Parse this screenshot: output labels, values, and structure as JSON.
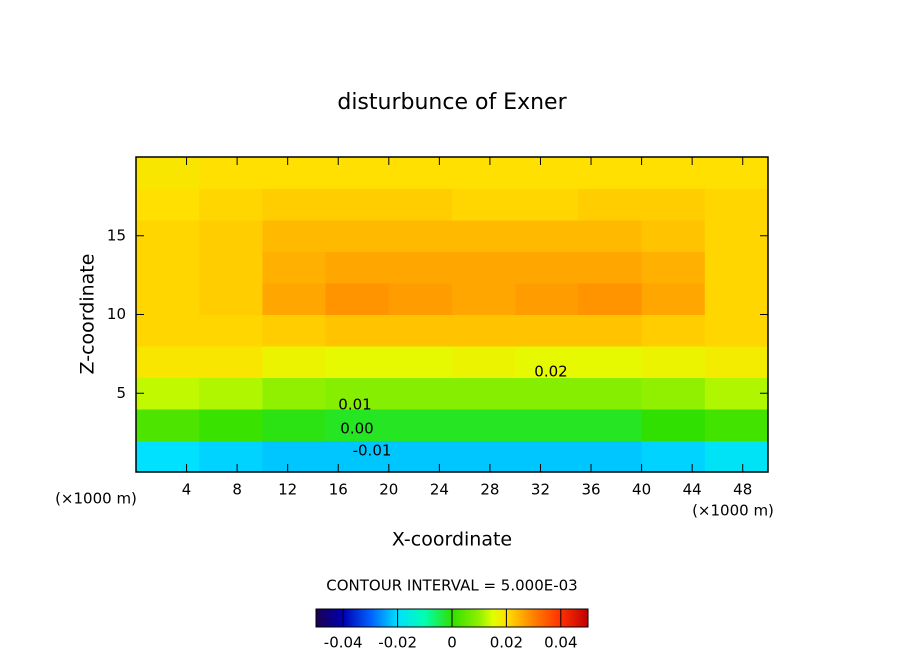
{
  "chart_data": {
    "type": "contour",
    "title": "disturbunce of Exner",
    "x_label": "X-coordinate",
    "y_label": "Z-coordinate",
    "x_unit": "(×1000 m)",
    "y_unit": "(×1000 m)",
    "note": "CONTOUR INTERVAL = 5.000E-03",
    "xlim": [
      0,
      50
    ],
    "ylim": [
      0,
      20
    ],
    "xticks": [
      4,
      8,
      12,
      16,
      20,
      24,
      28,
      32,
      36,
      40,
      44,
      48
    ],
    "yticks": [
      5,
      10,
      15
    ],
    "x": [
      2.5,
      7.5,
      12.5,
      17.5,
      22.5,
      27.5,
      32.5,
      37.5,
      42.5,
      47.5
    ],
    "y": [
      1,
      3,
      5,
      7,
      9,
      11,
      13,
      15,
      17,
      19
    ],
    "z": [
      [
        -0.02,
        -0.021,
        -0.022,
        -0.022,
        -0.022,
        -0.022,
        -0.022,
        -0.022,
        -0.021,
        -0.019
      ],
      [
        0.003,
        0.001,
        -0.001,
        -0.002,
        -0.002,
        -0.002,
        -0.002,
        -0.002,
        0,
        0.002
      ],
      [
        0.013,
        0.012,
        0.01,
        0.009,
        0.009,
        0.009,
        0.009,
        0.009,
        0.01,
        0.012
      ],
      [
        0.019,
        0.019,
        0.017,
        0.016,
        0.016,
        0.017,
        0.016,
        0.016,
        0.017,
        0.018
      ],
      [
        0.021,
        0.021,
        0.022,
        0.023,
        0.023,
        0.023,
        0.023,
        0.023,
        0.022,
        0.021
      ],
      [
        0.021,
        0.022,
        0.026,
        0.028,
        0.027,
        0.026,
        0.027,
        0.028,
        0.026,
        0.021
      ],
      [
        0.021,
        0.022,
        0.025,
        0.026,
        0.026,
        0.026,
        0.026,
        0.026,
        0.025,
        0.021
      ],
      [
        0.021,
        0.022,
        0.024,
        0.024,
        0.024,
        0.024,
        0.024,
        0.024,
        0.023,
        0.021
      ],
      [
        0.02,
        0.021,
        0.022,
        0.022,
        0.022,
        0.021,
        0.021,
        0.022,
        0.022,
        0.021
      ],
      [
        0.019,
        0.02,
        0.02,
        0.02,
        0.02,
        0.02,
        0.02,
        0.02,
        0.02,
        0.02
      ]
    ],
    "contour_labels": [
      "0.02",
      "0.01",
      {
        "value": 0,
        "label": "0.00"
      },
      "-0.01"
    ],
    "colorscale": [
      [
        -0.05,
        "#1a0050"
      ],
      [
        -0.04,
        "#0000b0"
      ],
      [
        -0.03,
        "#0060ff"
      ],
      [
        -0.02,
        "#00e0ff"
      ],
      [
        -0.01,
        "#00ffb0"
      ],
      [
        0,
        "#30e000"
      ],
      [
        0.01,
        "#90f000"
      ],
      [
        0.015,
        "#e0ff00"
      ],
      [
        0.02,
        "#ffe000"
      ],
      [
        0.025,
        "#ffb000"
      ],
      [
        0.03,
        "#ff8000"
      ],
      [
        0.04,
        "#ff3000"
      ],
      [
        0.05,
        "#c00000"
      ]
    ],
    "colorbar_ticks": [
      -0.04,
      -0.02,
      0,
      0.02,
      0.04
    ]
  }
}
